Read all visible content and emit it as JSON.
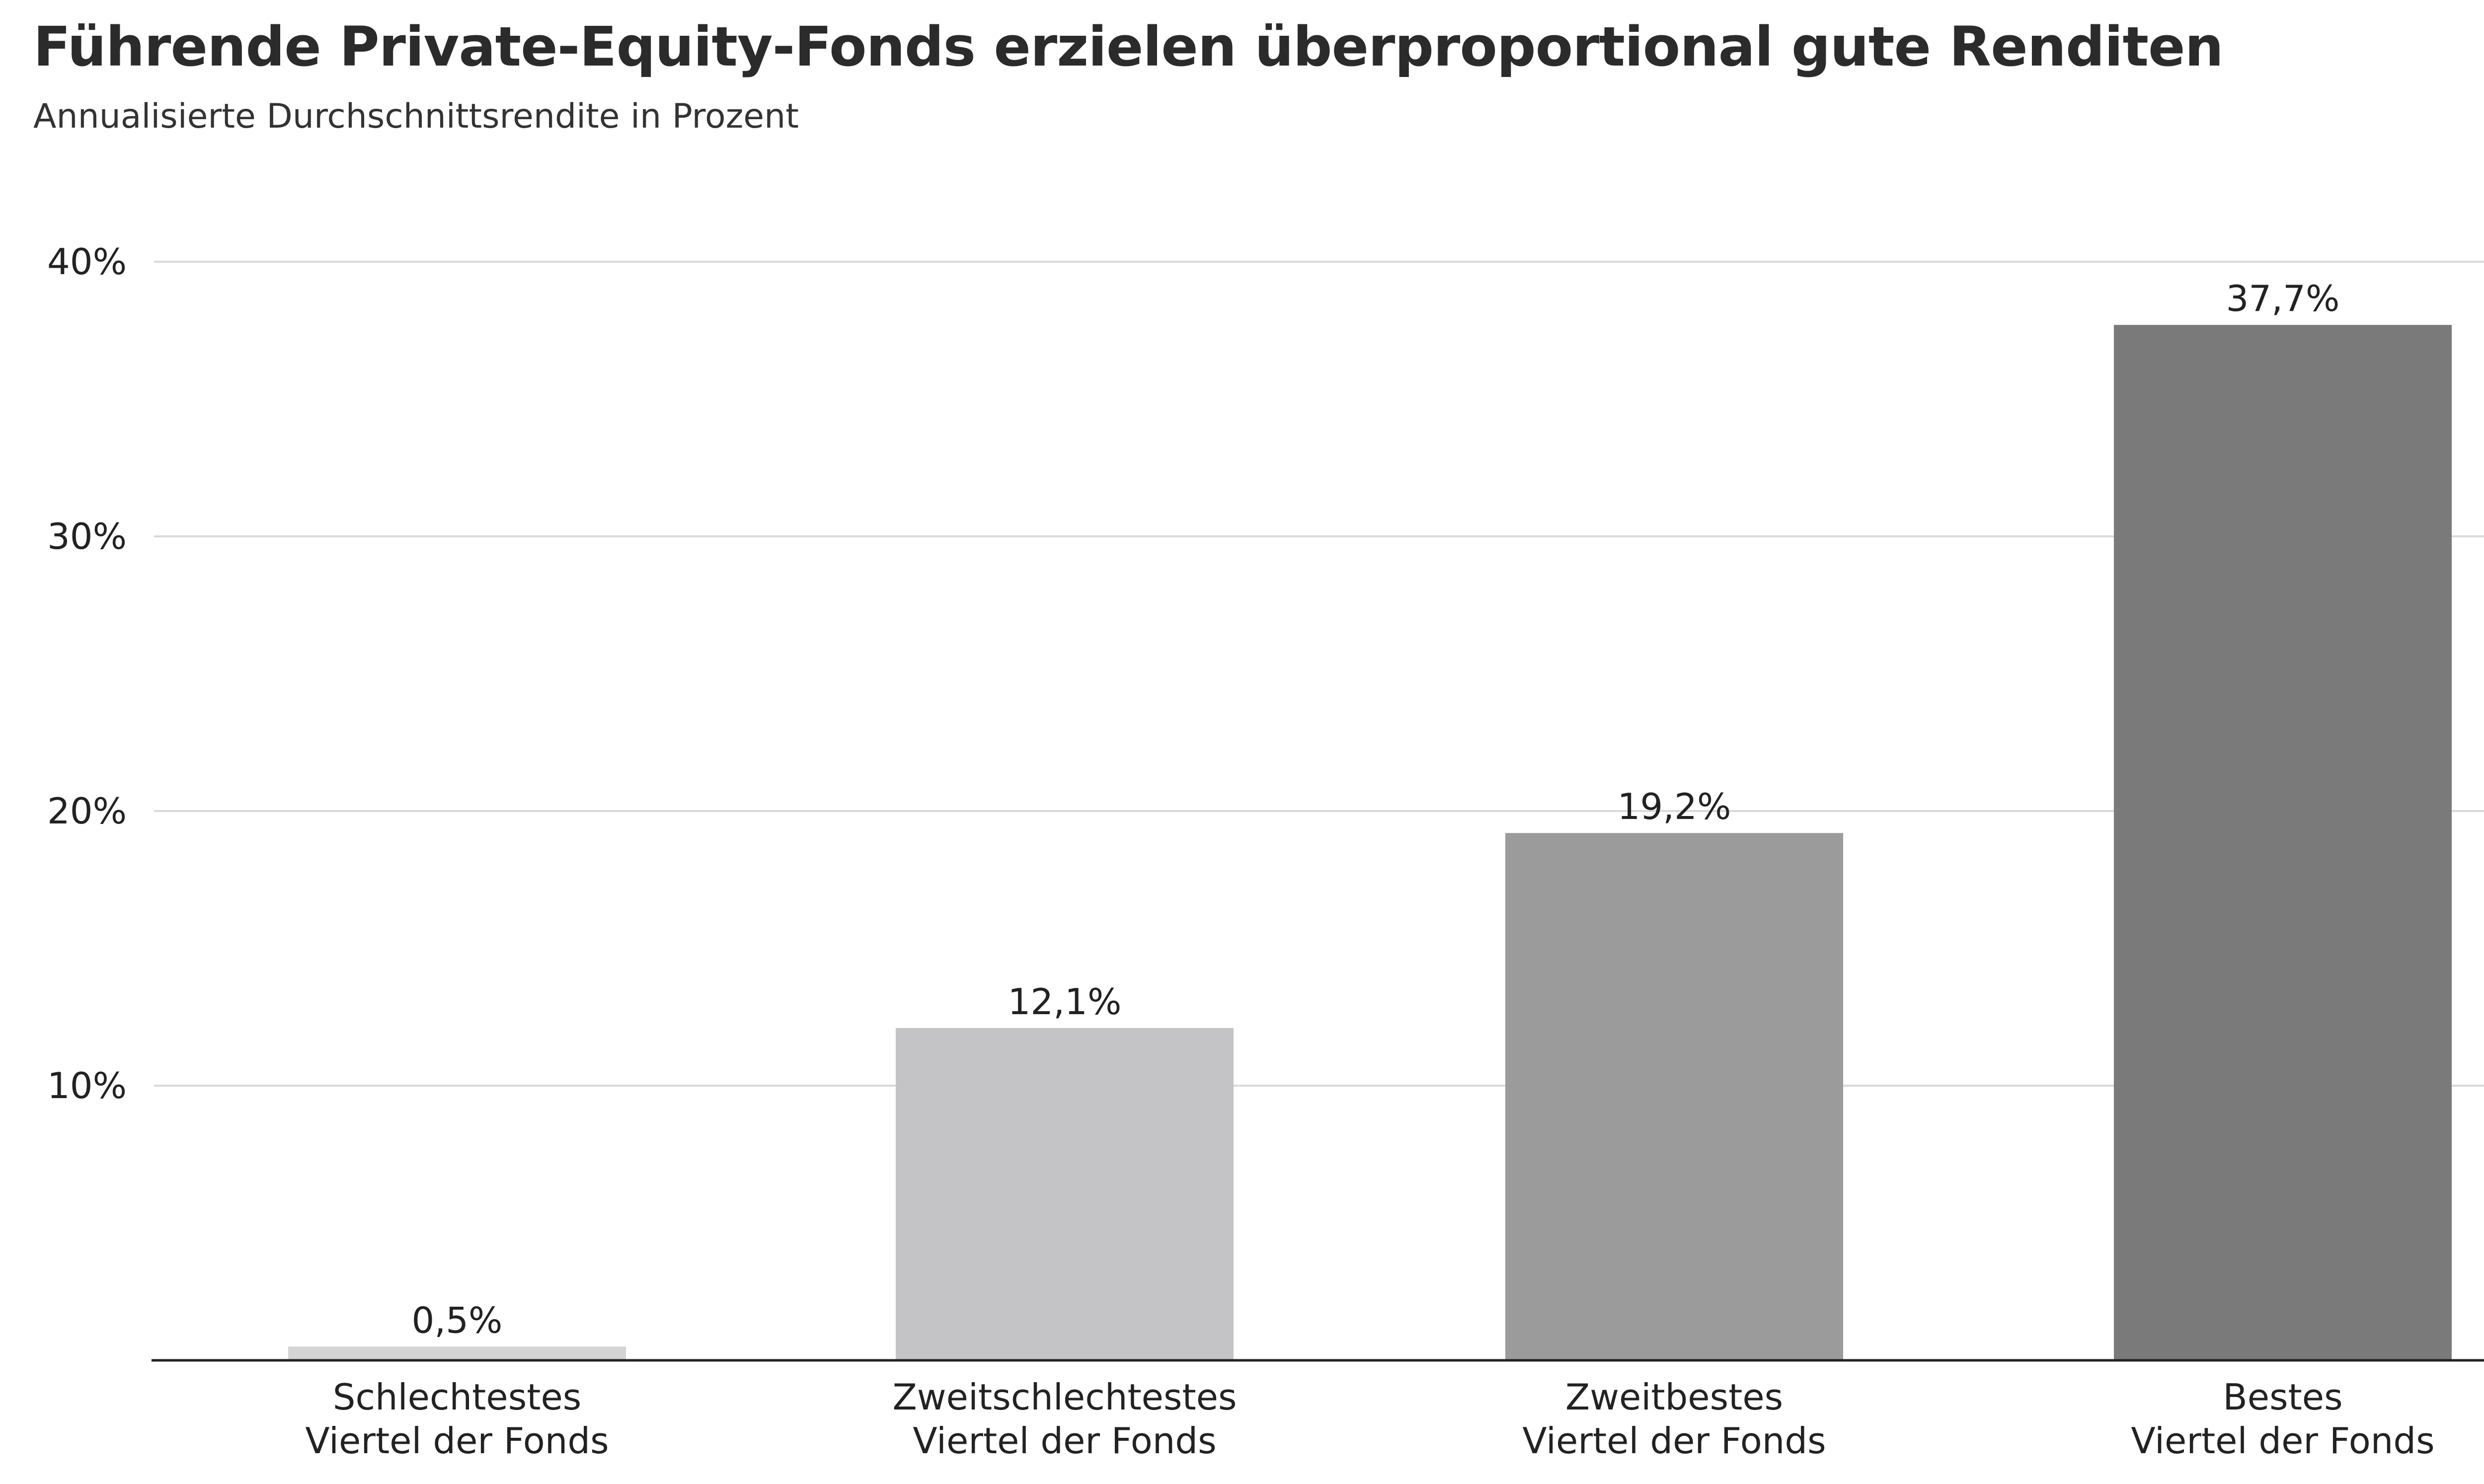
{
  "chart_data": {
    "type": "bar",
    "title": "Führende Private-Equity-Fonds erzielen überproportional gute Renditen",
    "subtitle": "Annualisierte Durchschnittsrendite in Prozent",
    "categories": [
      [
        "Schlechtestes",
        "Viertel der Fonds"
      ],
      [
        "Zweitschlechtestes",
        "Viertel der Fonds"
      ],
      [
        "Zweitbestes",
        "Viertel der Fonds"
      ],
      [
        "Bestes",
        "Viertel der Fonds"
      ]
    ],
    "values": [
      0.5,
      12.1,
      19.2,
      37.7
    ],
    "value_labels": [
      "0,5%",
      "12,1%",
      "19,2%",
      "37,7%"
    ],
    "bar_colors": [
      "#d4d4d4",
      "#c4c4c6",
      "#9b9b9b",
      "#7a7a7a"
    ],
    "ylim": [
      0,
      40
    ],
    "yticks": [
      10,
      20,
      30,
      40
    ],
    "ytick_labels": [
      "10%",
      "20%",
      "30%",
      "40%"
    ],
    "grid": true,
    "gridline_color": "#d9d9d9",
    "axis_color": "#222222"
  }
}
